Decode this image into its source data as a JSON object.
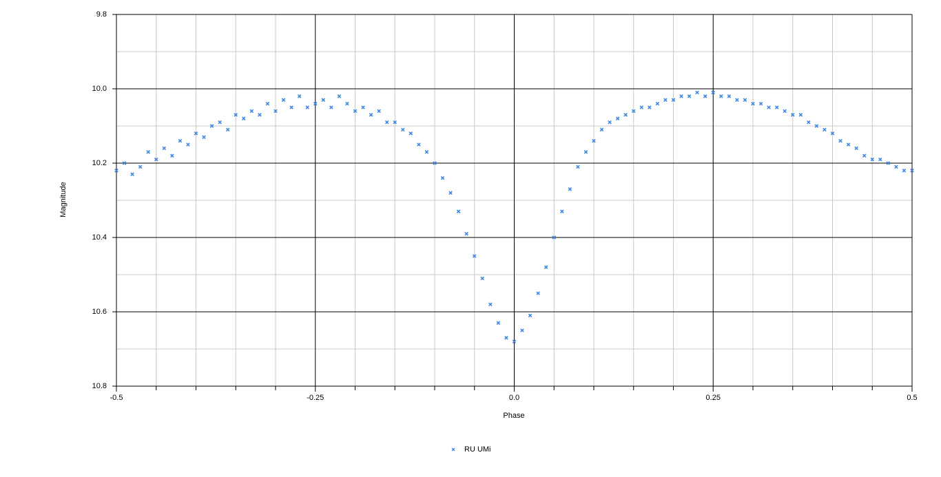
{
  "chart_data": {
    "type": "scatter",
    "x_label": "Phase",
    "y_label": "Magnitude",
    "xlim": [
      -0.5,
      0.5
    ],
    "ylim": [
      10.8,
      9.8
    ],
    "y_inverted": true,
    "xticks": [
      -0.5,
      -0.25,
      {
        "value": 0,
        "label": "0.0"
      },
      0.25,
      0.5
    ],
    "yticks": [
      9.8,
      {
        "value": 10,
        "label": "10.0"
      },
      10.2,
      10.4,
      10.6,
      10.8
    ],
    "x_minor_ticks": [
      -0.45,
      -0.4,
      -0.35,
      -0.3,
      -0.2,
      -0.15,
      -0.1,
      -0.05,
      0.05,
      0.1,
      0.15,
      0.2,
      0.3,
      0.35,
      0.4,
      0.45
    ],
    "y_minor_ticks": [
      9.9,
      10.1,
      10.3,
      10.5,
      10.7
    ],
    "grid": true,
    "legend": "bottom",
    "series": [
      {
        "name": "RU UMi",
        "color": "#3f87e0",
        "x": [
          -0.5,
          -0.49,
          -0.48,
          -0.47,
          -0.46,
          -0.45,
          -0.44,
          -0.43,
          -0.42,
          -0.41,
          -0.4,
          -0.39,
          -0.38,
          -0.37,
          -0.36,
          -0.35,
          -0.34,
          -0.33,
          -0.32,
          -0.31,
          -0.3,
          -0.29,
          -0.28,
          -0.27,
          -0.26,
          -0.25,
          -0.24,
          -0.23,
          -0.22,
          -0.21,
          -0.2,
          -0.19,
          -0.18,
          -0.17,
          -0.16,
          -0.15,
          -0.14,
          -0.13,
          -0.12,
          -0.11,
          -0.1,
          -0.09,
          -0.08,
          -0.07,
          -0.06,
          -0.05,
          -0.04,
          -0.03,
          -0.02,
          -0.01,
          0,
          0.01,
          0.02,
          0.03,
          0.04,
          0.05,
          0.06,
          0.07,
          0.08,
          0.09,
          0.1,
          0.11,
          0.12,
          0.13,
          0.14,
          0.15,
          0.16,
          0.17,
          0.18,
          0.19,
          0.2,
          0.21,
          0.22,
          0.23,
          0.24,
          0.25,
          0.26,
          0.27,
          0.28,
          0.29,
          0.3,
          0.31,
          0.32,
          0.33,
          0.34,
          0.35,
          0.36,
          0.37,
          0.38,
          0.39,
          0.4,
          0.41,
          0.42,
          0.43,
          0.44,
          0.45,
          0.46,
          0.47,
          0.48,
          0.49,
          0.5
        ],
        "values": [
          10.22,
          10.2,
          10.23,
          10.21,
          10.17,
          10.19,
          10.16,
          10.18,
          10.14,
          10.15,
          10.12,
          10.13,
          10.1,
          10.09,
          10.11,
          10.07,
          10.08,
          10.06,
          10.07,
          10.04,
          10.06,
          10.03,
          10.05,
          10.02,
          10.05,
          10.04,
          10.03,
          10.05,
          10.02,
          10.04,
          10.06,
          10.05,
          10.07,
          10.06,
          10.09,
          10.09,
          10.11,
          10.12,
          10.15,
          10.17,
          10.2,
          10.24,
          10.28,
          10.33,
          10.39,
          10.45,
          10.51,
          10.58,
          10.63,
          10.67,
          10.68,
          10.65,
          10.61,
          10.55,
          10.48,
          10.4,
          10.33,
          10.27,
          10.21,
          10.17,
          10.14,
          10.11,
          10.09,
          10.08,
          10.07,
          10.06,
          10.05,
          10.05,
          10.04,
          10.03,
          10.03,
          10.02,
          10.02,
          10.01,
          10.02,
          10.01,
          10.02,
          10.02,
          10.03,
          10.03,
          10.04,
          10.04,
          10.05,
          10.05,
          10.06,
          10.07,
          10.07,
          10.09,
          10.1,
          10.11,
          10.12,
          10.14,
          10.15,
          10.16,
          10.18,
          10.19,
          10.19,
          10.2,
          10.21,
          10.22,
          10.22
        ]
      }
    ]
  }
}
